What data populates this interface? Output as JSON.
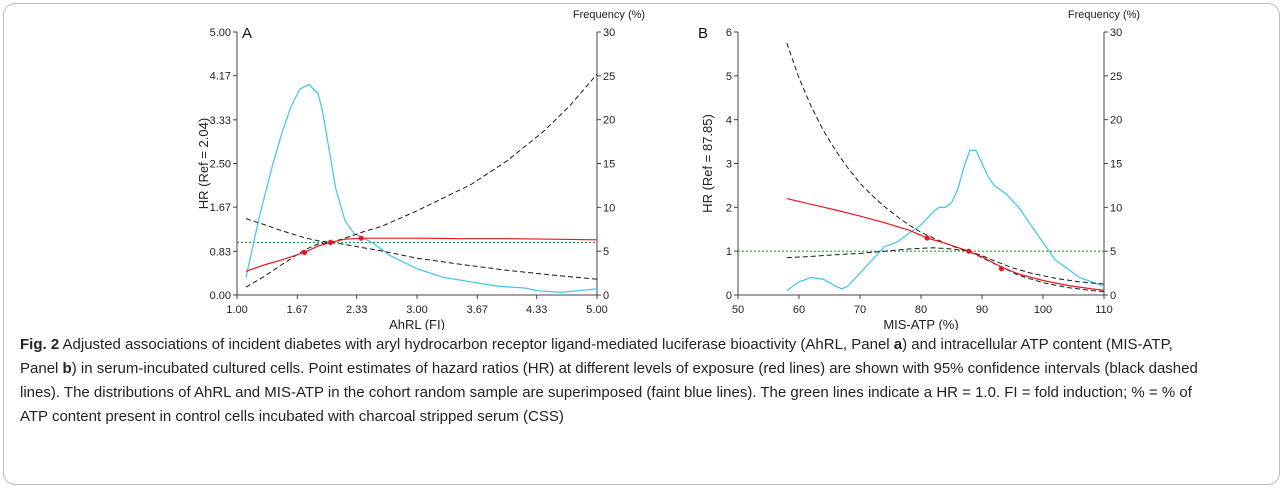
{
  "colors": {
    "hr_line": "#e8181e",
    "ci_line": "#1a1a1a",
    "frequency_line": "#4cc7e6",
    "reference_line": "#2e9b3a",
    "point": "#e8181e"
  },
  "caption": {
    "label": "Fig. 2",
    "part1": " Adjusted associations of incident diabetes with aryl hydrocarbon receptor ligand-mediated luciferase bioactivity (AhRL, Panel ",
    "panel_a": "a",
    "part2": ") and intracellular ATP content (MIS-ATP, Panel ",
    "panel_b": "b",
    "part3": ") in serum-incubated cultured cells. Point estimates of hazard ratios (HR) at different levels of exposure (red lines) are shown with 95% confidence intervals (black dashed lines). The distributions of AhRL and MIS-ATP in the cohort random sample are superimposed (faint blue lines). The green lines indicate a HR = 1.0. FI = fold induction; % = % of ATP content present in control cells incubated with charcoal stripped serum (CSS)"
  },
  "chart_data": [
    {
      "type": "line",
      "panel_label": "A",
      "xlabel": "AhRL (FI)",
      "ylabel": "HR (Ref = 2.04)",
      "y2label": "Frequency (%)",
      "xlim": [
        1.0,
        5.0
      ],
      "ylim": [
        0.0,
        5.0
      ],
      "y2lim": [
        0,
        30
      ],
      "x_ticks": [
        "1.00",
        "1.67",
        "2.33",
        "3.00",
        "3.67",
        "4.33",
        "5.00"
      ],
      "x_tick_values": [
        1.0,
        1.67,
        2.33,
        3.0,
        3.67,
        4.33,
        5.0
      ],
      "y_ticks": [
        "0.00",
        "0.83",
        "1.67",
        "2.50",
        "3.33",
        "4.17",
        "5.00"
      ],
      "y_tick_values": [
        0.0,
        0.83,
        1.67,
        2.5,
        3.33,
        4.17,
        5.0
      ],
      "y2_ticks": [
        "0",
        "5",
        "10",
        "15",
        "20",
        "25",
        "30"
      ],
      "y2_tick_values": [
        0,
        5,
        10,
        15,
        20,
        25,
        30
      ],
      "reference_hr": 1.0,
      "series": [
        {
          "role": "hr",
          "x": [
            1.1,
            1.3,
            1.5,
            1.75,
            1.9,
            2.04,
            2.2,
            2.4,
            2.6,
            3.0,
            3.5,
            4.0,
            4.5,
            5.0
          ],
          "y": [
            0.45,
            0.57,
            0.67,
            0.81,
            0.93,
            1.0,
            1.06,
            1.08,
            1.08,
            1.08,
            1.07,
            1.07,
            1.06,
            1.05
          ]
        },
        {
          "role": "ci_upper",
          "x": [
            1.1,
            1.3,
            1.5,
            1.75,
            1.9,
            2.04,
            2.2,
            2.4,
            2.6,
            2.8,
            3.0,
            3.3,
            3.6,
            4.0,
            4.4,
            4.7,
            5.0
          ],
          "y": [
            0.15,
            0.35,
            0.58,
            0.86,
            0.97,
            1.0,
            1.08,
            1.2,
            1.3,
            1.45,
            1.6,
            1.85,
            2.1,
            2.55,
            3.1,
            3.6,
            4.2
          ]
        },
        {
          "role": "ci_lower",
          "x": [
            1.1,
            1.3,
            1.5,
            1.75,
            1.9,
            2.04,
            2.2,
            2.4,
            2.6,
            3.0,
            3.5,
            4.0,
            4.5,
            5.0
          ],
          "y": [
            1.45,
            1.34,
            1.22,
            1.09,
            1.03,
            1.0,
            0.96,
            0.9,
            0.84,
            0.7,
            0.58,
            0.47,
            0.38,
            0.3
          ]
        },
        {
          "role": "frequency",
          "x": [
            1.1,
            1.25,
            1.4,
            1.5,
            1.6,
            1.7,
            1.8,
            1.9,
            1.95,
            2.0,
            2.1,
            2.2,
            2.3,
            2.4,
            2.5,
            2.7,
            3.0,
            3.3,
            3.6,
            3.9,
            4.2,
            4.33,
            4.6,
            4.8,
            5.0
          ],
          "y": [
            2.0,
            9.0,
            15.0,
            18.5,
            21.5,
            23.5,
            24.0,
            23.0,
            21.0,
            18.0,
            12.0,
            8.5,
            7.0,
            6.5,
            6.0,
            4.5,
            3.0,
            2.0,
            1.5,
            1.0,
            0.8,
            0.5,
            0.3,
            0.5,
            0.7
          ]
        }
      ],
      "points": [
        {
          "x": 1.75,
          "y": 0.81
        },
        {
          "x": 2.04,
          "y": 1.0
        },
        {
          "x": 2.38,
          "y": 1.08
        }
      ]
    },
    {
      "type": "line",
      "panel_label": "B",
      "xlabel": "MIS-ATP (%)",
      "ylabel": "HR (Ref = 87.85)",
      "y2label": "Frequency (%)",
      "xlim": [
        50,
        110
      ],
      "ylim": [
        0,
        6
      ],
      "y2lim": [
        0,
        30
      ],
      "x_ticks": [
        "50",
        "60",
        "70",
        "80",
        "90",
        "100",
        "110"
      ],
      "x_tick_values": [
        50,
        60,
        70,
        80,
        90,
        100,
        110
      ],
      "y_ticks": [
        "0",
        "1",
        "2",
        "3",
        "4",
        "5",
        "6"
      ],
      "y_tick_values": [
        0,
        1,
        2,
        3,
        4,
        5,
        6
      ],
      "y2_ticks": [
        "0",
        "5",
        "10",
        "15",
        "20",
        "25",
        "30"
      ],
      "y2_tick_values": [
        0,
        5,
        10,
        15,
        20,
        25,
        30
      ],
      "reference_hr": 1.0,
      "series": [
        {
          "role": "hr",
          "x": [
            58,
            62,
            66,
            70,
            74,
            78,
            81,
            84,
            87.85,
            90,
            93,
            96,
            100,
            104,
            108,
            110
          ],
          "y": [
            2.2,
            2.07,
            1.94,
            1.8,
            1.65,
            1.48,
            1.3,
            1.18,
            1.0,
            0.87,
            0.65,
            0.48,
            0.33,
            0.22,
            0.14,
            0.11
          ]
        },
        {
          "role": "ci_upper",
          "x": [
            58,
            60,
            62,
            64,
            66,
            68,
            70,
            72,
            74,
            76,
            78,
            80,
            82,
            84,
            86,
            87.85,
            90,
            92,
            95,
            98,
            102,
            106,
            110
          ],
          "y": [
            5.75,
            4.95,
            4.3,
            3.75,
            3.3,
            2.9,
            2.55,
            2.27,
            2.02,
            1.8,
            1.6,
            1.43,
            1.3,
            1.18,
            1.07,
            1.0,
            0.9,
            0.78,
            0.62,
            0.5,
            0.38,
            0.3,
            0.25
          ]
        },
        {
          "role": "ci_lower",
          "x": [
            58,
            62,
            66,
            70,
            74,
            78,
            82,
            85,
            87.85,
            90,
            93,
            96,
            100,
            104,
            108,
            110
          ],
          "y": [
            0.85,
            0.88,
            0.92,
            0.95,
            1.0,
            1.05,
            1.08,
            1.05,
            1.0,
            0.85,
            0.65,
            0.45,
            0.28,
            0.17,
            0.1,
            0.08
          ]
        },
        {
          "role": "frequency",
          "x": [
            58,
            60,
            62,
            64,
            66,
            67,
            68,
            70,
            72,
            74,
            76,
            78,
            80,
            82,
            83,
            84,
            85,
            86,
            87,
            88,
            89,
            90,
            91,
            92,
            94,
            96,
            98,
            100,
            102,
            104,
            106,
            108,
            110
          ],
          "y": [
            0.5,
            1.5,
            2.0,
            1.8,
            1.0,
            0.7,
            1.0,
            2.5,
            4.0,
            5.5,
            6.0,
            7.0,
            8.0,
            9.5,
            10.0,
            10.0,
            10.5,
            12.0,
            14.5,
            16.5,
            16.5,
            15.0,
            13.5,
            12.5,
            11.5,
            10.0,
            8.0,
            6.0,
            4.0,
            3.0,
            2.0,
            1.5,
            1.0
          ]
        }
      ],
      "points": [
        {
          "x": 81,
          "y": 1.3
        },
        {
          "x": 87.85,
          "y": 1.0
        },
        {
          "x": 93.2,
          "y": 0.6
        }
      ]
    }
  ]
}
